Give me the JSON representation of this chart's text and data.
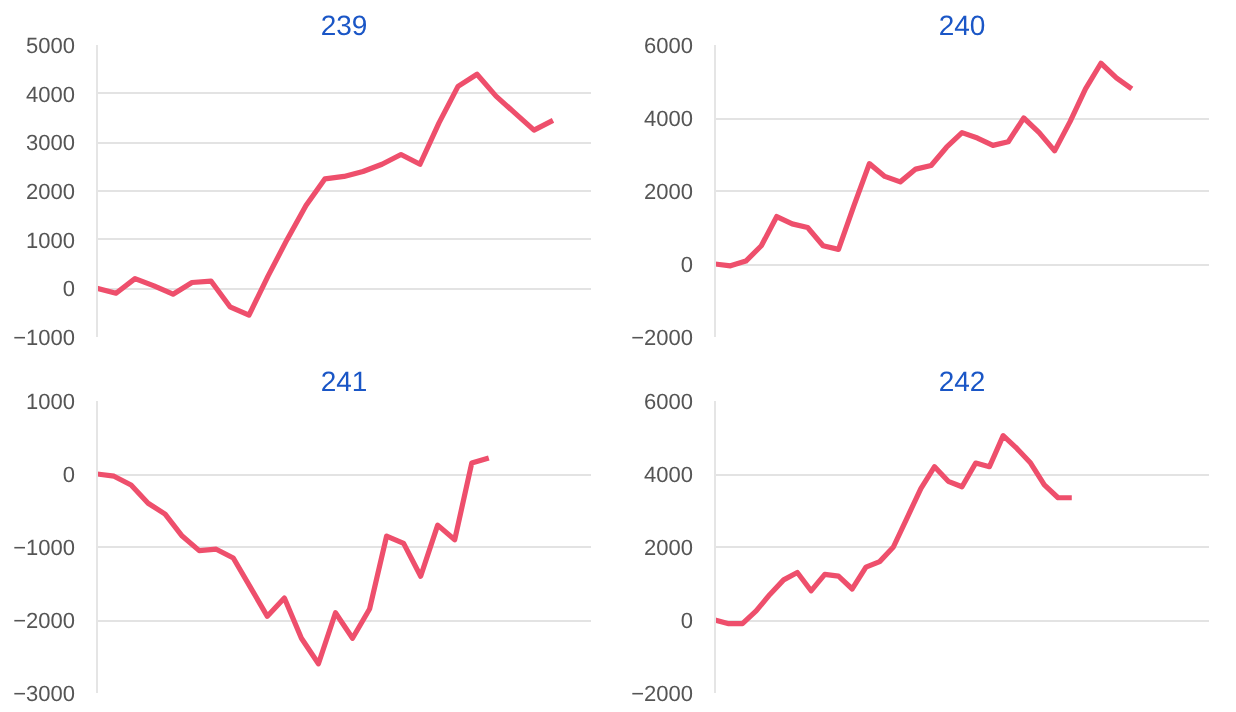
{
  "chart_data": [
    {
      "type": "line",
      "title": "239",
      "categories": [
        null,
        null,
        null,
        null,
        null,
        null,
        null,
        null,
        null,
        null,
        null,
        null,
        null,
        null,
        null,
        null,
        null,
        null,
        null,
        null,
        null,
        null,
        null,
        null,
        null,
        null,
        null
      ],
      "series": [
        {
          "color": "#ee4f6c",
          "values": [
            0,
            -100,
            200,
            50,
            -120,
            120,
            150,
            -380,
            -550,
            250,
            1000,
            1700,
            2250,
            2300,
            2400,
            2550,
            2750,
            2550,
            3400,
            4150,
            4400,
            3950,
            3600,
            3250,
            3450,
            null,
            null
          ]
        }
      ],
      "ylim": [
        -1000,
        5000
      ],
      "yticks": [
        -1000,
        0,
        1000,
        2000,
        3000,
        4000,
        5000
      ],
      "grid": "y",
      "marker": "none",
      "line_style": "solid"
    },
    {
      "type": "line",
      "title": "240",
      "categories": [
        null,
        null,
        null,
        null,
        null,
        null,
        null,
        null,
        null,
        null,
        null,
        null,
        null,
        null,
        null,
        null,
        null,
        null,
        null,
        null,
        null,
        null,
        null,
        null,
        null,
        null,
        null,
        null,
        null,
        null,
        null,
        null,
        null
      ],
      "series": [
        {
          "color": "#ee4f6c",
          "values": [
            0,
            -50,
            80,
            500,
            1300,
            1100,
            1000,
            500,
            400,
            1600,
            2750,
            2400,
            2250,
            2600,
            2700,
            3200,
            3600,
            3450,
            3250,
            3350,
            4000,
            3600,
            3100,
            3900,
            4800,
            5500,
            5100,
            4800,
            null,
            null,
            null,
            null,
            null
          ]
        }
      ],
      "ylim": [
        -2000,
        6000
      ],
      "yticks": [
        -2000,
        0,
        2000,
        4000,
        6000
      ],
      "grid": "y",
      "marker": "none",
      "line_style": "solid"
    },
    {
      "type": "line",
      "title": "241",
      "categories": [
        null,
        null,
        null,
        null,
        null,
        null,
        null,
        null,
        null,
        null,
        null,
        null,
        null,
        null,
        null,
        null,
        null,
        null,
        null,
        null,
        null,
        null,
        null,
        null,
        null,
        null,
        null,
        null,
        null,
        null
      ],
      "series": [
        {
          "color": "#ee4f6c",
          "values": [
            0,
            -30,
            -150,
            -400,
            -550,
            -850,
            -1050,
            -1030,
            -1150,
            -1550,
            -1950,
            -1700,
            -2250,
            -2600,
            -1900,
            -2250,
            -1850,
            -850,
            -950,
            -1400,
            -700,
            -900,
            150,
            220,
            null,
            null,
            null,
            null,
            null,
            null
          ]
        }
      ],
      "ylim": [
        -3000,
        1000
      ],
      "yticks": [
        -3000,
        -2000,
        -1000,
        0,
        1000
      ],
      "grid": "y",
      "marker": "none",
      "line_style": "solid"
    },
    {
      "type": "line",
      "title": "242",
      "categories": [
        null,
        null,
        null,
        null,
        null,
        null,
        null,
        null,
        null,
        null,
        null,
        null,
        null,
        null,
        null,
        null,
        null,
        null,
        null,
        null,
        null,
        null,
        null,
        null,
        null,
        null,
        null,
        null,
        null,
        null,
        null,
        null,
        null,
        null,
        null,
        null,
        null
      ],
      "series": [
        {
          "color": "#ee4f6c",
          "values": [
            0,
            -100,
            -100,
            250,
            700,
            1100,
            1300,
            800,
            1250,
            1200,
            850,
            1450,
            1600,
            2000,
            2800,
            3600,
            4200,
            3800,
            3650,
            4300,
            4200,
            5050,
            4700,
            4300,
            3700,
            3350,
            3350,
            null,
            null,
            null,
            null,
            null,
            null,
            null,
            null,
            null,
            null
          ]
        }
      ],
      "ylim": [
        -2000,
        6000
      ],
      "yticks": [
        -2000,
        0,
        2000,
        4000,
        6000
      ],
      "grid": "y",
      "marker": "none",
      "line_style": "solid"
    }
  ]
}
